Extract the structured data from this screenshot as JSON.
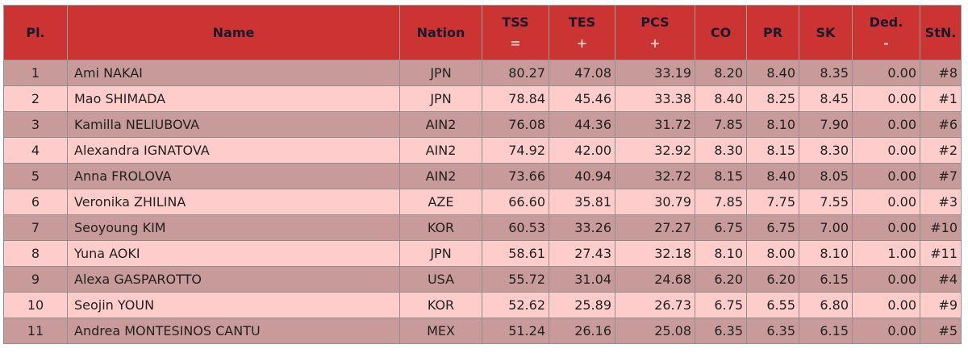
{
  "table": {
    "header": [
      {
        "text": "Pl."
      },
      {
        "text": "Name"
      },
      {
        "text": "Nation"
      },
      {
        "text": "TSS",
        "sign": "="
      },
      {
        "text": "TES",
        "sign": "+"
      },
      {
        "text": "PCS",
        "sign": "+"
      },
      {
        "text": "CO"
      },
      {
        "text": "PR"
      },
      {
        "text": "SK"
      },
      {
        "text": "Ded.",
        "sign": "-"
      },
      {
        "text": "StN."
      }
    ],
    "rows": [
      [
        "1",
        "Ami NAKAI",
        "JPN",
        "80.27",
        "47.08",
        "33.19",
        "8.20",
        "8.40",
        "8.35",
        "0.00",
        "#8"
      ],
      [
        "2",
        "Mao SHIMADA",
        "JPN",
        "78.84",
        "45.46",
        "33.38",
        "8.40",
        "8.25",
        "8.45",
        "0.00",
        "#1"
      ],
      [
        "3",
        "Kamilla NELIUBOVA",
        "AIN2",
        "76.08",
        "44.36",
        "31.72",
        "7.85",
        "8.10",
        "7.90",
        "0.00",
        "#6"
      ],
      [
        "4",
        "Alexandra IGNATOVA",
        "AIN2",
        "74.92",
        "42.00",
        "32.92",
        "8.30",
        "8.15",
        "8.30",
        "0.00",
        "#2"
      ],
      [
        "5",
        "Anna FROLOVA",
        "AIN2",
        "73.66",
        "40.94",
        "32.72",
        "8.15",
        "8.40",
        "8.05",
        "0.00",
        "#7"
      ],
      [
        "6",
        "Veronika ZHILINA",
        "AZE",
        "66.60",
        "35.81",
        "30.79",
        "7.85",
        "7.75",
        "7.55",
        "0.00",
        "#3"
      ],
      [
        "7",
        "Seoyoung KIM",
        "KOR",
        "60.53",
        "33.26",
        "27.27",
        "6.75",
        "6.75",
        "7.00",
        "0.00",
        "#10"
      ],
      [
        "8",
        "Yuna AOKI",
        "JPN",
        "58.61",
        "27.43",
        "32.18",
        "8.10",
        "8.00",
        "8.10",
        "1.00",
        "#11"
      ],
      [
        "9",
        "Alexa GASPAROTTO",
        "USA",
        "55.72",
        "31.04",
        "24.68",
        "6.20",
        "6.20",
        "6.15",
        "0.00",
        "#4"
      ],
      [
        "10",
        "Seojin YOUN",
        "KOR",
        "52.62",
        "25.89",
        "26.73",
        "6.75",
        "6.55",
        "6.80",
        "0.00",
        "#9"
      ],
      [
        "11",
        "Andrea MONTESINOS CANTU",
        "MEX",
        "51.24",
        "26.16",
        "25.08",
        "6.35",
        "6.35",
        "6.15",
        "0.00",
        "#5"
      ]
    ]
  }
}
